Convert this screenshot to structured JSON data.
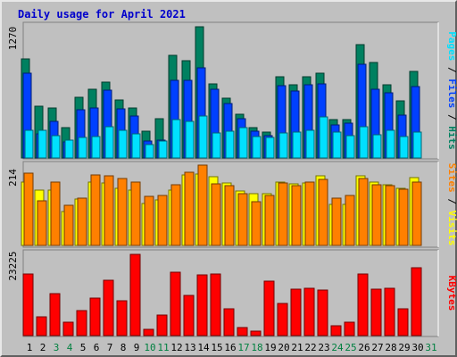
{
  "title": "Daily usage for April 2021",
  "colors": {
    "background": "#c0c0c0",
    "title": "#0000cc",
    "hits": "#008060",
    "files": "#0040ff",
    "pages": "#00e0ff",
    "visits": "#ffff00",
    "sites": "#ff8000",
    "kbytes": "#ff0000",
    "weekday_label": "#000000",
    "weekend_label": "#008040"
  },
  "chart_data": [
    {
      "type": "bar",
      "max_label": "1270",
      "ylim": [
        0,
        1270
      ],
      "legend": [
        "Pages",
        "Files",
        "Hits"
      ],
      "legend_separator": " / ",
      "categories": [
        "1",
        "2",
        "3",
        "4",
        "5",
        "6",
        "7",
        "8",
        "9",
        "10",
        "11",
        "12",
        "13",
        "14",
        "15",
        "16",
        "17",
        "18",
        "19",
        "20",
        "21",
        "22",
        "23",
        "24",
        "25",
        "26",
        "27",
        "28",
        "29",
        "30",
        "31"
      ],
      "series": [
        {
          "name": "Hits",
          "values": [
            955,
            500,
            488,
            292,
            585,
            668,
            732,
            564,
            488,
            258,
            376,
            992,
            938,
            1270,
            720,
            580,
            423,
            290,
            250,
            786,
            705,
            786,
            818,
            375,
            375,
            1100,
            925,
            706,
            552,
            839,
            0
          ]
        },
        {
          "name": "Files",
          "values": [
            818,
            234,
            352,
            152,
            466,
            480,
            660,
            475,
            403,
            168,
            173,
            751,
            750,
            870,
            664,
            528,
            382,
            262,
            218,
            704,
            646,
            712,
            717,
            319,
            338,
            905,
            661,
            627,
            413,
            695,
            0
          ]
        },
        {
          "name": "Pages",
          "values": [
            272,
            272,
            214,
            170,
            195,
            209,
            300,
            272,
            232,
            129,
            163,
            372,
            357,
            405,
            240,
            258,
            292,
            208,
            198,
            243,
            252,
            270,
            396,
            250,
            219,
            299,
            227,
            264,
            205,
            252,
            0
          ]
        }
      ]
    },
    {
      "type": "bar",
      "max_label": "214",
      "ylim": [
        0,
        214
      ],
      "legend": [
        "Sites",
        "Visits"
      ],
      "legend_separator": " / ",
      "categories": [
        "1",
        "2",
        "3",
        "4",
        "5",
        "6",
        "7",
        "8",
        "9",
        "10",
        "11",
        "12",
        "13",
        "14",
        "15",
        "16",
        "17",
        "18",
        "19",
        "20",
        "21",
        "22",
        "23",
        "24",
        "25",
        "26",
        "27",
        "28",
        "29",
        "30",
        "31"
      ],
      "series": [
        {
          "name": "Visits",
          "values": [
            170,
            148,
            147,
            91,
            124,
            168,
            167,
            152,
            147,
            111,
            121,
            148,
            188,
            191,
            182,
            167,
            145,
            138,
            138,
            170,
            165,
            167,
            185,
            109,
            110,
            186,
            168,
            162,
            151,
            181,
            0
          ]
        },
        {
          "name": "Sites",
          "values": [
            192,
            118,
            168,
            108,
            126,
            189,
            186,
            179,
            170,
            130,
            132,
            162,
            195,
            214,
            164,
            160,
            139,
            117,
            133,
            166,
            160,
            168,
            177,
            125,
            132,
            179,
            162,
            160,
            150,
            168,
            0
          ]
        }
      ]
    },
    {
      "type": "bar",
      "max_label": "23225",
      "ylim": [
        0,
        23225
      ],
      "legend": [
        "KBytes"
      ],
      "legend_separator": "",
      "categories": [
        "1",
        "2",
        "3",
        "4",
        "5",
        "6",
        "7",
        "8",
        "9",
        "10",
        "11",
        "12",
        "13",
        "14",
        "15",
        "16",
        "17",
        "18",
        "19",
        "20",
        "21",
        "22",
        "23",
        "24",
        "25",
        "26",
        "27",
        "28",
        "29",
        "30",
        "31"
      ],
      "series": [
        {
          "name": "KBytes",
          "values": [
            17600,
            5400,
            12100,
            3900,
            7200,
            10800,
            15700,
            10000,
            23225,
            1800,
            5900,
            18000,
            11500,
            17300,
            17500,
            7600,
            2300,
            1300,
            15600,
            9100,
            13300,
            13400,
            13000,
            2900,
            3900,
            17600,
            13300,
            13600,
            7700,
            19500,
            0
          ]
        }
      ]
    }
  ],
  "x_axis": {
    "days": [
      "1",
      "2",
      "3",
      "4",
      "5",
      "6",
      "7",
      "8",
      "9",
      "10",
      "11",
      "12",
      "13",
      "14",
      "15",
      "16",
      "17",
      "18",
      "19",
      "20",
      "21",
      "22",
      "23",
      "24",
      "25",
      "26",
      "27",
      "28",
      "29",
      "30",
      "31"
    ],
    "weekend": [
      false,
      false,
      true,
      true,
      false,
      false,
      false,
      false,
      false,
      true,
      true,
      false,
      false,
      false,
      false,
      false,
      true,
      true,
      false,
      false,
      false,
      false,
      false,
      true,
      true,
      false,
      false,
      false,
      false,
      false,
      true
    ]
  }
}
